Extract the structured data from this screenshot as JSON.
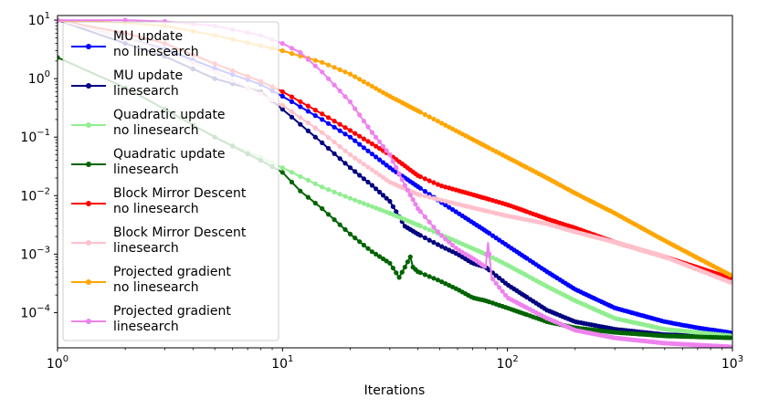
{
  "chart_data": {
    "type": "line",
    "title": "",
    "xlabel": "Iterations",
    "ylabel": "",
    "xscale": "log",
    "yscale": "log",
    "xlim": [
      1,
      1000
    ],
    "ylim": [
      2.5e-05,
      12
    ],
    "grid": false,
    "legend_position": "upper-left",
    "x_ticks": [
      {
        "value": 1,
        "base": "10",
        "exp": "0"
      },
      {
        "value": 10,
        "base": "10",
        "exp": "1"
      },
      {
        "value": 100,
        "base": "10",
        "exp": "2"
      },
      {
        "value": 1000,
        "base": "10",
        "exp": "3"
      }
    ],
    "y_ticks": [
      {
        "value": 0.0001,
        "base": "10",
        "exp": "−4"
      },
      {
        "value": 0.001,
        "base": "10",
        "exp": "−3"
      },
      {
        "value": 0.01,
        "base": "10",
        "exp": "−2"
      },
      {
        "value": 0.1,
        "base": "10",
        "exp": "−1"
      },
      {
        "value": 1,
        "base": "10",
        "exp": "0"
      },
      {
        "value": 10,
        "base": "10",
        "exp": "1"
      }
    ],
    "series": [
      {
        "name": "MU update no linesearch",
        "legend_lines": [
          "MU update",
          "no linesearch"
        ],
        "color": "#0000ff",
        "x": [
          1,
          2,
          3,
          5,
          8,
          10,
          15,
          20,
          30,
          50,
          80,
          100,
          150,
          200,
          300,
          500,
          700,
          1000
        ],
        "y": [
          10,
          5,
          3.2,
          1.5,
          0.8,
          0.5,
          0.2,
          0.1,
          0.03,
          0.008,
          0.0025,
          0.0014,
          0.0005,
          0.00025,
          0.00012,
          7e-05,
          5.5e-05,
          4.5e-05
        ]
      },
      {
        "name": "MU update linesearch",
        "legend_lines": [
          "MU update",
          "linesearch"
        ],
        "color": "#000080",
        "x": [
          1,
          2,
          3,
          5,
          8,
          10,
          15,
          20,
          25,
          30,
          35,
          40,
          50,
          60,
          70,
          80,
          100,
          150,
          200,
          300,
          500,
          1000
        ],
        "y": [
          10,
          4,
          2.4,
          1.0,
          0.6,
          0.3,
          0.08,
          0.03,
          0.015,
          0.008,
          0.003,
          0.0022,
          0.0014,
          0.001,
          0.0007,
          0.0006,
          0.0003,
          0.00011,
          7e-05,
          5.2e-05,
          4.2e-05,
          3.8e-05
        ]
      },
      {
        "name": "Quadratic update no linesearch",
        "legend_lines": [
          "Quadratic update",
          "no linesearch"
        ],
        "color": "#90ee90",
        "x": [
          1,
          2,
          3,
          5,
          8,
          10,
          15,
          20,
          30,
          50,
          80,
          100,
          150,
          200,
          300,
          500,
          1000
        ],
        "y": [
          2.3,
          0.7,
          0.3,
          0.1,
          0.045,
          0.03,
          0.014,
          0.009,
          0.005,
          0.0022,
          0.001,
          0.00065,
          0.00028,
          0.00016,
          8e-05,
          5.2e-05,
          4e-05
        ]
      },
      {
        "name": "Quadratic update linesearch",
        "legend_lines": [
          "Quadratic update",
          "linesearch"
        ],
        "color": "#006400",
        "x": [
          1,
          2,
          3,
          5,
          8,
          10,
          12,
          15,
          20,
          25,
          30,
          33,
          35,
          37,
          38,
          40,
          50,
          60,
          70,
          80,
          100,
          150,
          200,
          300,
          500,
          1000
        ],
        "y": [
          2.3,
          0.7,
          0.3,
          0.1,
          0.04,
          0.025,
          0.012,
          0.006,
          0.0022,
          0.0011,
          0.0007,
          0.0004,
          0.0006,
          0.0009,
          0.0006,
          0.0005,
          0.00035,
          0.00025,
          0.00018,
          0.00016,
          0.00012,
          7e-05,
          5.5e-05,
          4.6e-05,
          4e-05,
          3.7e-05
        ]
      },
      {
        "name": "Block Mirror Descent no linesearch",
        "legend_lines": [
          "Block Mirror Descent",
          "no linesearch"
        ],
        "color": "#ff0000",
        "x": [
          1,
          2,
          3,
          5,
          8,
          10,
          15,
          20,
          30,
          40,
          50,
          80,
          100,
          150,
          200,
          300,
          500,
          1000
        ],
        "y": [
          10,
          6,
          4,
          1.8,
          0.9,
          0.6,
          0.25,
          0.13,
          0.05,
          0.022,
          0.015,
          0.009,
          0.007,
          0.004,
          0.0028,
          0.0016,
          0.0009,
          0.00038
        ]
      },
      {
        "name": "Block Mirror Descent linesearch",
        "legend_lines": [
          "Block Mirror Descent",
          "linesearch"
        ],
        "color": "#ffc0cb",
        "x": [
          1,
          2,
          3,
          5,
          8,
          10,
          15,
          20,
          30,
          40,
          50,
          80,
          100,
          150,
          200,
          300,
          500,
          1000
        ],
        "y": [
          10,
          5,
          3,
          1.3,
          0.55,
          0.35,
          0.12,
          0.05,
          0.017,
          0.0105,
          0.0085,
          0.0055,
          0.0045,
          0.0033,
          0.0024,
          0.0016,
          0.0009,
          0.00032
        ]
      },
      {
        "name": "Projected gradient no linesearch",
        "legend_lines": [
          "Projected gradient",
          "no linesearch"
        ],
        "color": "#ffa500",
        "x": [
          1,
          2,
          3,
          5,
          10,
          15,
          20,
          30,
          50,
          80,
          100,
          150,
          200,
          300,
          500,
          1000
        ],
        "y": [
          10,
          9,
          8,
          5.5,
          3,
          1.9,
          1.2,
          0.5,
          0.18,
          0.07,
          0.045,
          0.02,
          0.011,
          0.005,
          0.0017,
          0.00042
        ]
      },
      {
        "name": "Projected gradient linesearch",
        "legend_lines": [
          "Projected gradient",
          "linesearch"
        ],
        "color": "#ee82ee",
        "x": [
          1,
          2,
          3,
          5,
          8,
          10,
          12,
          15,
          20,
          25,
          30,
          35,
          40,
          50,
          60,
          70,
          80,
          82,
          85,
          90,
          100,
          150,
          200,
          300,
          500,
          1000
        ],
        "y": [
          10,
          10,
          9.5,
          8,
          5.5,
          4,
          2.8,
          1.3,
          0.4,
          0.12,
          0.05,
          0.015,
          0.006,
          0.0022,
          0.0012,
          0.00085,
          0.0006,
          0.0016,
          0.0004,
          0.0003,
          0.00018,
          8e-05,
          5e-05,
          3.7e-05,
          3e-05,
          2.6e-05
        ]
      }
    ]
  }
}
